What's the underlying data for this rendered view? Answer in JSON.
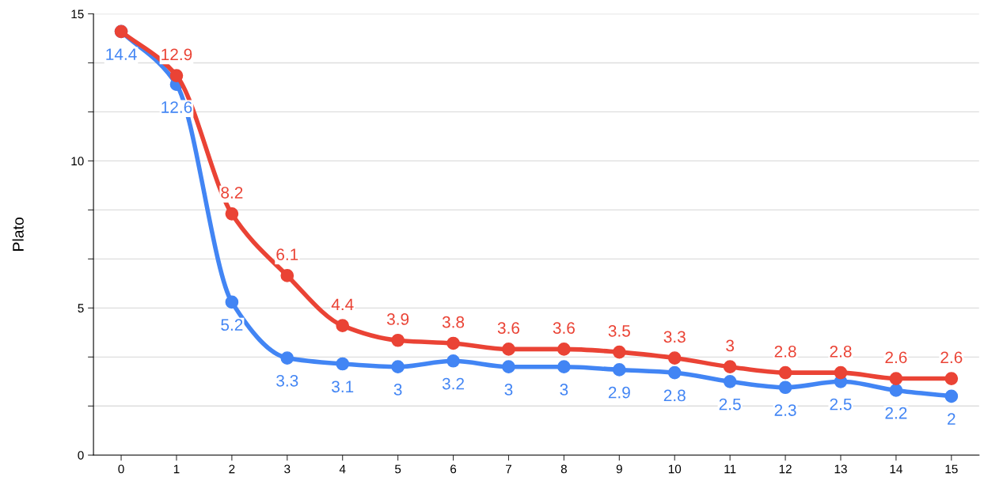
{
  "chart_data": {
    "type": "line",
    "ylabel": "Plato",
    "x": [
      0,
      1,
      2,
      3,
      4,
      5,
      6,
      7,
      8,
      9,
      10,
      11,
      12,
      13,
      14,
      15
    ],
    "series": [
      {
        "color": "#4285f4",
        "values": [
          14.4,
          12.6,
          5.2,
          3.3,
          3.1,
          3,
          3.2,
          3,
          3,
          2.9,
          2.8,
          2.5,
          2.3,
          2.5,
          2.2,
          2
        ],
        "value_labels": [
          "14.4",
          "12.6",
          "5.2",
          "3.3",
          "3.1",
          "3",
          "3.2",
          "3",
          "3",
          "2.9",
          "2.8",
          "2.5",
          "2.3",
          "2.5",
          "2.2",
          "2"
        ]
      },
      {
        "color": "#ea4335",
        "values": [
          14.4,
          12.9,
          8.2,
          6.1,
          4.4,
          3.9,
          3.8,
          3.6,
          3.6,
          3.5,
          3.3,
          3,
          2.8,
          2.8,
          2.6,
          2.6
        ],
        "value_labels": [
          null,
          "12.9",
          "8.2",
          "6.1",
          "4.4",
          "3.9",
          "3.8",
          "3.6",
          "3.6",
          "3.5",
          "3.3",
          "3",
          "2.8",
          "2.8",
          "2.6",
          "2.6"
        ]
      }
    ],
    "xlim": [
      -0.5,
      15.5
    ],
    "xticks": [
      0,
      1,
      2,
      3,
      4,
      5,
      6,
      7,
      8,
      9,
      10,
      11,
      12,
      13,
      14,
      15
    ],
    "ylim": [
      0,
      15
    ],
    "yticks": [
      0,
      {
        "value": 1.667,
        "label": null
      },
      {
        "value": 3.333,
        "label": null
      },
      5,
      {
        "value": 6.667,
        "label": null
      },
      {
        "value": 8.333,
        "label": null
      },
      10,
      {
        "value": 11.667,
        "label": null
      },
      {
        "value": 13.333,
        "label": null
      },
      15
    ],
    "grid": "y",
    "marker": "circle",
    "line_style": "solid",
    "legend": false
  }
}
